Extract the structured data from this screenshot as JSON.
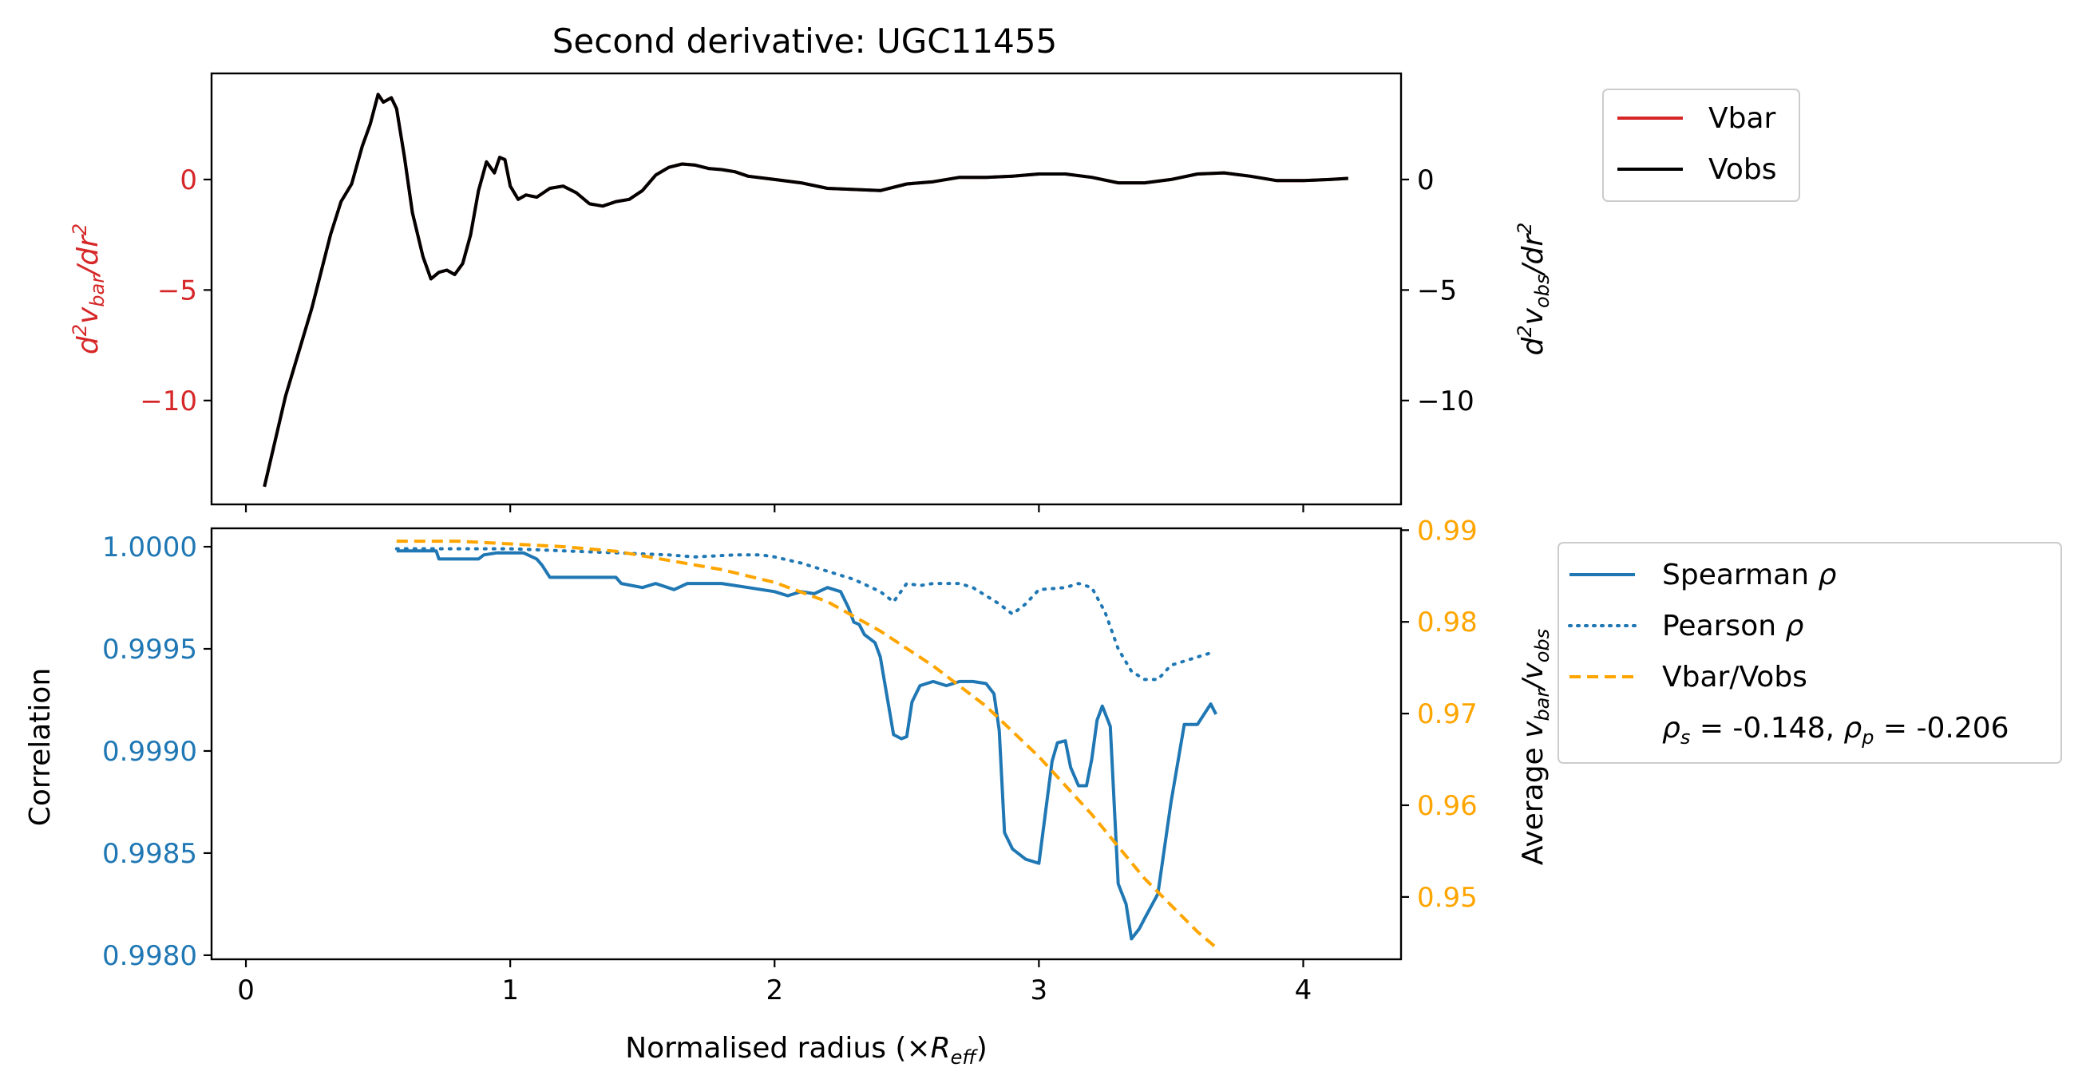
{
  "chart_data": [
    {
      "type": "line",
      "title": "Second derivative: UGC11455",
      "ylabel_left": "d²v_bar/dr²",
      "ylabel_right": "d²v_obs/dr²",
      "xlim": [
        -0.13,
        4.37
      ],
      "ylim": [
        -14.7,
        4.8
      ],
      "yticks": [
        0,
        -5,
        -10
      ],
      "ytick_labels": [
        "0",
        "−5",
        "−10"
      ],
      "xticks": [
        0,
        1,
        2,
        3,
        4
      ],
      "grid": false,
      "legend_position": "outside-top-right",
      "colors": {
        "vbar": "#d62728",
        "vobs": "#000000",
        "left_axis": "#d62728"
      },
      "series": [
        {
          "name": "Vbar",
          "x": [
            0.07,
            0.15,
            0.25,
            0.32,
            0.36,
            0.4,
            0.44,
            0.47,
            0.5,
            0.52,
            0.55,
            0.57,
            0.6,
            0.63,
            0.67,
            0.7,
            0.73,
            0.76,
            0.79,
            0.82,
            0.85,
            0.88,
            0.91,
            0.94,
            0.96,
            0.98,
            1.0,
            1.03,
            1.06,
            1.1,
            1.15,
            1.2,
            1.25,
            1.3,
            1.35,
            1.4,
            1.45,
            1.5,
            1.55,
            1.6,
            1.65,
            1.7,
            1.75,
            1.8,
            1.85,
            1.9,
            2.0,
            2.1,
            2.2,
            2.3,
            2.4,
            2.5,
            2.6,
            2.7,
            2.8,
            2.9,
            3.0,
            3.1,
            3.2,
            3.3,
            3.4,
            3.5,
            3.6,
            3.7,
            3.8,
            3.9,
            4.0,
            4.1,
            4.17
          ],
          "y": [
            -13.9,
            -9.8,
            -5.8,
            -2.5,
            -1.0,
            -0.2,
            1.5,
            2.5,
            3.85,
            3.5,
            3.7,
            3.2,
            1.0,
            -1.5,
            -3.5,
            -4.5,
            -4.2,
            -4.1,
            -4.3,
            -3.8,
            -2.5,
            -0.5,
            0.8,
            0.3,
            1.0,
            0.9,
            -0.3,
            -0.9,
            -0.7,
            -0.8,
            -0.4,
            -0.3,
            -0.6,
            -1.1,
            -1.2,
            -1.0,
            -0.9,
            -0.5,
            0.2,
            0.55,
            0.7,
            0.65,
            0.5,
            0.45,
            0.35,
            0.15,
            0.0,
            -0.15,
            -0.4,
            -0.45,
            -0.5,
            -0.2,
            -0.1,
            0.1,
            0.1,
            0.15,
            0.25,
            0.25,
            0.1,
            -0.15,
            -0.15,
            0.0,
            0.25,
            0.3,
            0.15,
            -0.05,
            -0.05,
            0.0,
            0.05
          ]
        },
        {
          "name": "Vobs",
          "x": [
            0.07,
            0.15,
            0.25,
            0.32,
            0.36,
            0.4,
            0.44,
            0.47,
            0.5,
            0.52,
            0.55,
            0.57,
            0.6,
            0.63,
            0.67,
            0.7,
            0.73,
            0.76,
            0.79,
            0.82,
            0.85,
            0.88,
            0.91,
            0.94,
            0.96,
            0.98,
            1.0,
            1.03,
            1.06,
            1.1,
            1.15,
            1.2,
            1.25,
            1.3,
            1.35,
            1.4,
            1.45,
            1.5,
            1.55,
            1.6,
            1.65,
            1.7,
            1.75,
            1.8,
            1.85,
            1.9,
            2.0,
            2.1,
            2.2,
            2.3,
            2.4,
            2.5,
            2.6,
            2.7,
            2.8,
            2.9,
            3.0,
            3.1,
            3.2,
            3.3,
            3.4,
            3.5,
            3.6,
            3.7,
            3.8,
            3.9,
            4.0,
            4.1,
            4.17
          ],
          "y": [
            -13.9,
            -9.8,
            -5.8,
            -2.5,
            -1.0,
            -0.2,
            1.5,
            2.5,
            3.85,
            3.5,
            3.7,
            3.2,
            1.0,
            -1.5,
            -3.5,
            -4.5,
            -4.2,
            -4.1,
            -4.3,
            -3.8,
            -2.5,
            -0.5,
            0.8,
            0.3,
            1.0,
            0.9,
            -0.3,
            -0.9,
            -0.7,
            -0.8,
            -0.4,
            -0.3,
            -0.6,
            -1.1,
            -1.2,
            -1.0,
            -0.9,
            -0.5,
            0.2,
            0.55,
            0.7,
            0.65,
            0.5,
            0.45,
            0.35,
            0.15,
            0.0,
            -0.15,
            -0.4,
            -0.45,
            -0.5,
            -0.2,
            -0.1,
            0.1,
            0.1,
            0.15,
            0.25,
            0.25,
            0.1,
            -0.15,
            -0.15,
            0.0,
            0.25,
            0.3,
            0.15,
            -0.05,
            -0.05,
            0.0,
            0.05
          ]
        }
      ]
    },
    {
      "type": "line",
      "xlabel": "Normalised radius (×R_eff)",
      "ylabel_left": "Correlation",
      "ylabel_right": "Average v_bar/v_obs",
      "xlim": [
        -0.13,
        4.37
      ],
      "ylim_left": [
        0.99798,
        1.00009
      ],
      "ylim_right": [
        0.9432,
        0.9902
      ],
      "xticks": [
        0,
        1,
        2,
        3,
        4
      ],
      "xtick_labels": [
        "0",
        "1",
        "2",
        "3",
        "4"
      ],
      "yticks_left": [
        1.0,
        0.9995,
        0.999,
        0.9985,
        0.998
      ],
      "ytick_labels_left": [
        "1.0000",
        "0.9995",
        "0.9990",
        "0.9985",
        "0.9980"
      ],
      "yticks_right": [
        0.99,
        0.98,
        0.97,
        0.96,
        0.95
      ],
      "ytick_labels_right": [
        "0.99",
        "0.98",
        "0.97",
        "0.96",
        "0.95"
      ],
      "grid": false,
      "legend_position": "outside-right",
      "colors": {
        "spearman": "#1f77b4",
        "pearson": "#1f77b4",
        "ratio": "#ffa500",
        "left_axis": "#1f77b4",
        "right_axis": "#ffa500"
      },
      "series": [
        {
          "name": "Spearman ρ",
          "axis": "left",
          "x": [
            0.57,
            0.72,
            0.73,
            0.88,
            0.9,
            0.95,
            1.05,
            1.1,
            1.12,
            1.15,
            1.4,
            1.42,
            1.5,
            1.55,
            1.62,
            1.67,
            1.8,
            1.9,
            2.0,
            2.05,
            2.1,
            2.15,
            2.2,
            2.25,
            2.28,
            2.3,
            2.32,
            2.34,
            2.36,
            2.38,
            2.4,
            2.45,
            2.48,
            2.5,
            2.52,
            2.55,
            2.6,
            2.65,
            2.7,
            2.75,
            2.8,
            2.83,
            2.85,
            2.87,
            2.9,
            2.95,
            3.0,
            3.05,
            3.07,
            3.1,
            3.12,
            3.15,
            3.18,
            3.2,
            3.22,
            3.24,
            3.27,
            3.3,
            3.33,
            3.35,
            3.38,
            3.4,
            3.45,
            3.5,
            3.55,
            3.6,
            3.65,
            3.67
          ],
          "y": [
            0.99998,
            0.99998,
            0.99994,
            0.99994,
            0.99996,
            0.99997,
            0.99997,
            0.99994,
            0.99991,
            0.99985,
            0.99985,
            0.99982,
            0.9998,
            0.99982,
            0.99979,
            0.99982,
            0.99982,
            0.9998,
            0.99978,
            0.99976,
            0.99978,
            0.99977,
            0.9998,
            0.99978,
            0.9997,
            0.99963,
            0.99962,
            0.99957,
            0.99955,
            0.99953,
            0.99946,
            0.99908,
            0.99906,
            0.99907,
            0.99924,
            0.99932,
            0.99934,
            0.99932,
            0.99934,
            0.99934,
            0.99933,
            0.99928,
            0.9991,
            0.9986,
            0.99852,
            0.99847,
            0.99845,
            0.99895,
            0.99904,
            0.99905,
            0.99892,
            0.99883,
            0.99883,
            0.99896,
            0.99915,
            0.99922,
            0.99912,
            0.99835,
            0.99825,
            0.99808,
            0.99813,
            0.99818,
            0.9983,
            0.99875,
            0.99913,
            0.99913,
            0.99923,
            0.99918
          ]
        },
        {
          "name": "Pearson ρ",
          "axis": "left",
          "x": [
            0.57,
            0.8,
            1.0,
            1.2,
            1.4,
            1.6,
            1.7,
            1.85,
            1.95,
            2.0,
            2.1,
            2.2,
            2.3,
            2.4,
            2.45,
            2.5,
            2.55,
            2.6,
            2.7,
            2.75,
            2.8,
            2.85,
            2.9,
            2.95,
            3.0,
            3.1,
            3.15,
            3.2,
            3.25,
            3.3,
            3.35,
            3.4,
            3.45,
            3.5,
            3.55,
            3.6,
            3.65
          ],
          "y": [
            0.99999,
            0.99999,
            0.99999,
            0.99998,
            0.99997,
            0.99996,
            0.99995,
            0.99996,
            0.99996,
            0.99995,
            0.99992,
            0.99988,
            0.99984,
            0.99978,
            0.99973,
            0.99982,
            0.99981,
            0.99982,
            0.99982,
            0.9998,
            0.99976,
            0.99972,
            0.99967,
            0.99972,
            0.99979,
            0.9998,
            0.99982,
            0.9998,
            0.99968,
            0.9995,
            0.99939,
            0.99935,
            0.99935,
            0.99942,
            0.99944,
            0.99946,
            0.99948
          ]
        },
        {
          "name": "Vbar/Vobs",
          "axis": "right",
          "x": [
            0.57,
            0.8,
            1.0,
            1.2,
            1.4,
            1.6,
            1.8,
            2.0,
            2.2,
            2.4,
            2.6,
            2.8,
            3.0,
            3.2,
            3.4,
            3.6,
            3.67
          ],
          "y": [
            0.9888,
            0.9888,
            0.9885,
            0.9882,
            0.9877,
            0.9867,
            0.9857,
            0.9843,
            0.9822,
            0.979,
            0.9752,
            0.9708,
            0.9653,
            0.959,
            0.952,
            0.9462,
            0.9445
          ]
        }
      ],
      "annotation": "ρ_s = -0.148, ρ_p = -0.206"
    }
  ],
  "labels": {
    "title": "Second derivative: UGC11455",
    "top_ylabel_left": {
      "base": "d",
      "sup1": "2",
      "v": "v",
      "sub": "bar",
      "div": "/dr",
      "sup2": "2"
    },
    "top_ylabel_right": {
      "base": "d",
      "sup1": "2",
      "v": "v",
      "sub": "obs",
      "div": "/dr",
      "sup2": "2"
    },
    "bottom_ylabel_left": "Correlation",
    "bottom_ylabel_right": {
      "prefix": "Average ",
      "v1": "v",
      "sub1": "bar",
      "slash": "/",
      "v2": "v",
      "sub2": "obs"
    },
    "xlabel": {
      "prefix": "Normalised radius (×",
      "R": "R",
      "sub": "eff",
      "suffix": ")"
    }
  },
  "legend_top": [
    {
      "label": "Vbar",
      "color": "#d62728",
      "style": "solid"
    },
    {
      "label": "Vobs",
      "color": "#000000",
      "style": "solid"
    }
  ],
  "legend_bottom": [
    {
      "label_prefix": "Spearman ",
      "label_greek": "ρ",
      "color": "#1f77b4",
      "style": "solid"
    },
    {
      "label_prefix": "Pearson ",
      "label_greek": "ρ",
      "color": "#1f77b4",
      "style": "dotted"
    },
    {
      "label_prefix": "Vbar/Vobs",
      "label_greek": "",
      "color": "#ffa500",
      "style": "dashed"
    }
  ],
  "legend_annotation": {
    "r1": "ρ",
    "s1": "s",
    "v1": " = -0.148, ",
    "r2": "ρ",
    "s2": "p",
    "v2": " = -0.206"
  }
}
